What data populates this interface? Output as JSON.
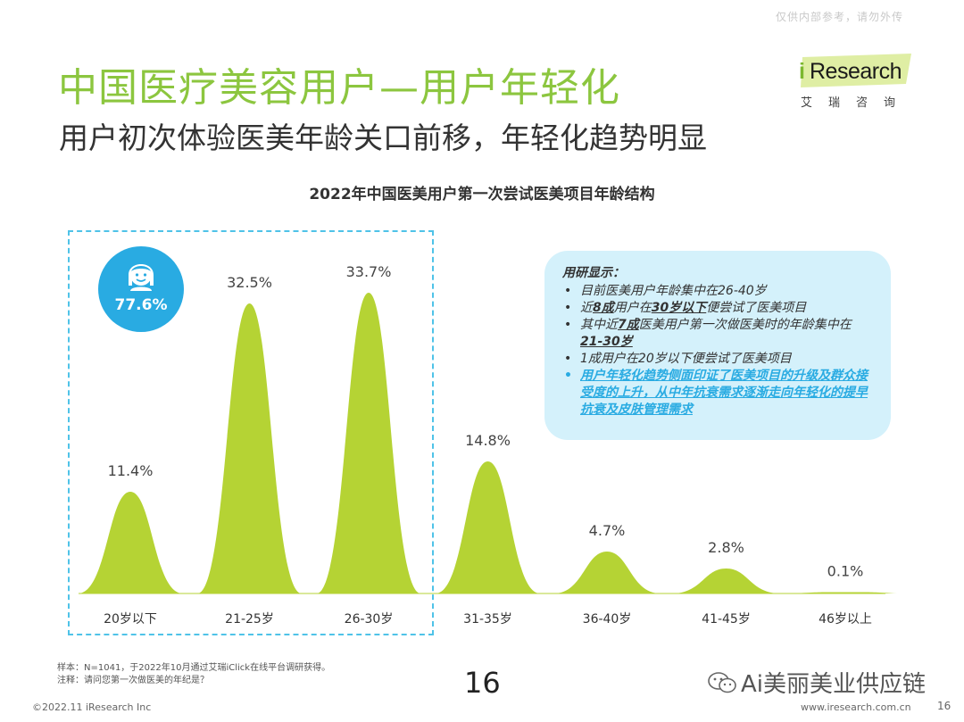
{
  "header": {
    "watermark": "仅供内部参考，请勿外传",
    "title": "中国医疗美容用户—用户年轻化",
    "subtitle": "用户初次体验医美年龄关口前移，年轻化趋势明显",
    "logo_text": "Research",
    "logo_i": "i",
    "logo_cn": "艾瑞咨询"
  },
  "badge": {
    "value": "77.6%",
    "icon": "user-face-icon"
  },
  "callout": {
    "heading": "用研显示：",
    "items": [
      {
        "pre": "目前医美用户年龄集中在26-40岁"
      },
      {
        "pre": "近",
        "em1": "8成",
        "mid": "用户在",
        "em2": "30岁以下",
        "post": "便尝试了医美项目"
      },
      {
        "pre": "其中近",
        "em1": "7成",
        "post": "医美用户第一次做医美时的年龄集中在",
        "em2": "21-30岁"
      },
      {
        "pre": "1成用户在20岁以下便尝试了医美项目"
      },
      {
        "highlight": "用户年轻化趋势侧面印证了医美项目的升级及群众接受度的上升，从中年抗衰需求逐渐走向年轻化的提早抗衰及皮肤管理需求"
      }
    ]
  },
  "chart_data": {
    "type": "area",
    "title": "2022年中国医美用户第一次尝试医美项目年龄结构",
    "categories": [
      "20岁以下",
      "21-25岁",
      "26-30岁",
      "31-35岁",
      "36-40岁",
      "41-45岁",
      "46岁以上"
    ],
    "values": [
      11.4,
      32.5,
      33.7,
      14.8,
      4.7,
      2.8,
      0.1
    ],
    "labels": [
      "11.4%",
      "32.5%",
      "33.7%",
      "14.8%",
      "4.7%",
      "2.8%",
      "0.1%"
    ],
    "unit": "%",
    "color": "#b5d334",
    "highlight_group": [
      "20岁以下",
      "21-25岁",
      "26-30岁"
    ],
    "highlight_total": "77.6%",
    "highlight_border": "#4fc3e8"
  },
  "footer": {
    "sample": "样本：N=1041，于2022年10月通过艾瑞iClick在线平台调研获得。",
    "note": "注释：请问您第一次做医美的年纪是？",
    "source": "©2022.11 iResearch Inc",
    "page_big": "16",
    "wechat": "Ai美丽美业供应链",
    "site": "www.iresearch.com.cn",
    "page": "16"
  }
}
